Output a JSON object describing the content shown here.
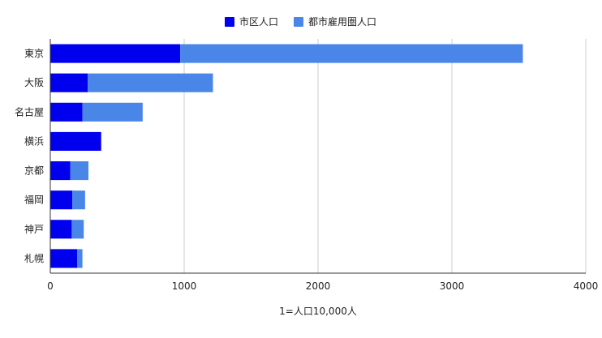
{
  "chart_data": {
    "type": "bar",
    "orientation": "horizontal",
    "stacked": true,
    "categories": [
      "東京",
      "大阪",
      "名古屋",
      "横浜",
      "京都",
      "福岡",
      "神戸",
      "札幌"
    ],
    "series": [
      {
        "name": "市区人口",
        "color": "#0000ee",
        "values": [
          970,
          280,
          240,
          380,
          150,
          165,
          160,
          200
        ]
      },
      {
        "name": "都市雇用圏人口",
        "color": "#4a86e8",
        "values": [
          2560,
          935,
          450,
          0,
          135,
          95,
          90,
          40
        ]
      }
    ],
    "xlabel": "1=人口10,000人",
    "ylabel": "",
    "title": "",
    "xlim": [
      0,
      4000
    ],
    "xticks": [
      0,
      1000,
      2000,
      3000,
      4000
    ],
    "grid": true,
    "legend_position": "top-center"
  }
}
